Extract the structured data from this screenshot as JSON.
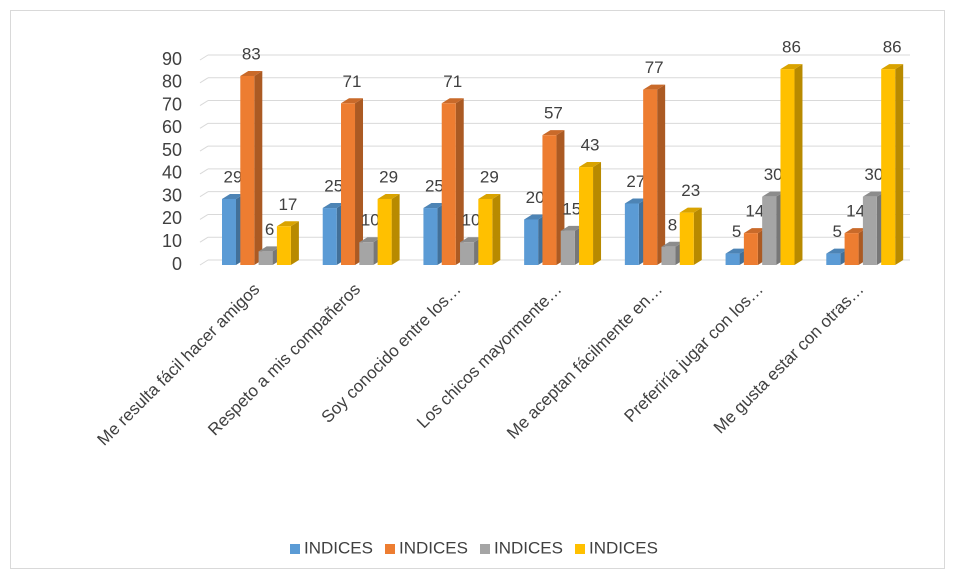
{
  "chart_data": {
    "type": "bar3d",
    "categories": [
      "Me resulta fácil hacer amigos",
      "Respeto a mis compañeros",
      "Soy conocido entre los…",
      "Los chicos mayormente…",
      "Me aceptan fácilmente en…",
      "Preferiría jugar con los…",
      "Me gusta estar con otras…"
    ],
    "series": [
      {
        "name": "INDICES",
        "color": "#5b9bd5",
        "values": [
          29,
          25,
          25,
          20,
          27,
          5,
          5
        ]
      },
      {
        "name": "INDICES",
        "color": "#ed7d31",
        "values": [
          83,
          71,
          71,
          57,
          77,
          14,
          14
        ]
      },
      {
        "name": "INDICES",
        "color": "#a5a5a5",
        "values": [
          6,
          10,
          10,
          15,
          8,
          30,
          30
        ]
      },
      {
        "name": "INDICES",
        "color": "#ffc000",
        "values": [
          17,
          29,
          29,
          43,
          23,
          86,
          86
        ]
      }
    ],
    "ylim": [
      0,
      90
    ],
    "yticks": [
      0,
      10,
      20,
      30,
      40,
      50,
      60,
      70,
      80,
      90
    ],
    "grid": true,
    "legend": "bottom"
  }
}
